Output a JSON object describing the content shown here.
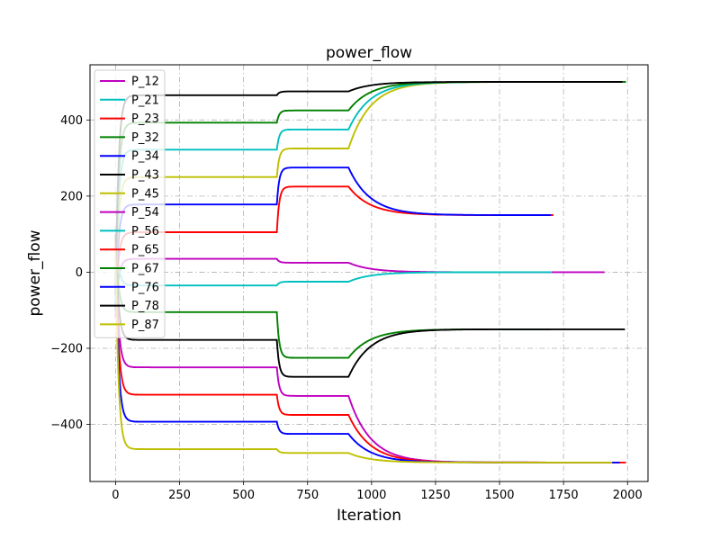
{
  "chart_data": {
    "type": "line",
    "title": "power_flow",
    "xlabel": "Iteration",
    "ylabel": "power_flow",
    "xlim": [
      -100,
      2080
    ],
    "ylim": [
      -550,
      545
    ],
    "xticks": [
      0,
      250,
      500,
      750,
      1000,
      1250,
      1500,
      1750,
      2000
    ],
    "yticks": [
      -400,
      -200,
      0,
      200,
      400
    ],
    "grid": true,
    "grid_style": "dashdot",
    "legend_position": "upper-left",
    "series": [
      {
        "name": "P_12",
        "color": "#bf00bf",
        "start": -120,
        "a": 35,
        "b": 25,
        "c": 0,
        "end": 1910
      },
      {
        "name": "P_21",
        "color": "#00bfbf",
        "start": 120,
        "a": -35,
        "b": -25,
        "c": 0,
        "end": 1705
      },
      {
        "name": "P_23",
        "color": "#ff0000",
        "start": -100,
        "a": 105,
        "b": 225,
        "c": 150,
        "end": 1710
      },
      {
        "name": "P_32",
        "color": "#008000",
        "start": 100,
        "a": -105,
        "b": -225,
        "c": -150,
        "end": 1700
      },
      {
        "name": "P_34",
        "color": "#0000ff",
        "start": -100,
        "a": 178,
        "b": 275,
        "c": 150,
        "end": 1700
      },
      {
        "name": "P_43",
        "color": "#000000",
        "start": 100,
        "a": -178,
        "b": -275,
        "c": -150,
        "end": 1990
      },
      {
        "name": "P_45",
        "color": "#bfbf00",
        "start": -80,
        "a": 250,
        "b": 325,
        "c": 500,
        "end": 1950
      },
      {
        "name": "P_54",
        "color": "#bf00bf",
        "start": 80,
        "a": -250,
        "b": -325,
        "c": -500,
        "end": 1950
      },
      {
        "name": "P_56",
        "color": "#00bfbf",
        "start": -80,
        "a": 322,
        "b": 375,
        "c": 500,
        "end": 1950
      },
      {
        "name": "P_65",
        "color": "#ff0000",
        "start": 80,
        "a": -322,
        "b": -375,
        "c": -500,
        "end": 1995
      },
      {
        "name": "P_67",
        "color": "#008000",
        "start": -60,
        "a": 393,
        "b": 425,
        "c": 500,
        "end": 1995
      },
      {
        "name": "P_76",
        "color": "#0000ff",
        "start": 60,
        "a": -393,
        "b": -425,
        "c": -500,
        "end": 1970
      },
      {
        "name": "P_78",
        "color": "#000000",
        "start": -60,
        "a": 465,
        "b": 475,
        "c": 500,
        "end": 1980
      },
      {
        "name": "P_87",
        "color": "#bfbf00",
        "start": 60,
        "a": -465,
        "b": -475,
        "c": -500,
        "end": 1940
      }
    ]
  }
}
